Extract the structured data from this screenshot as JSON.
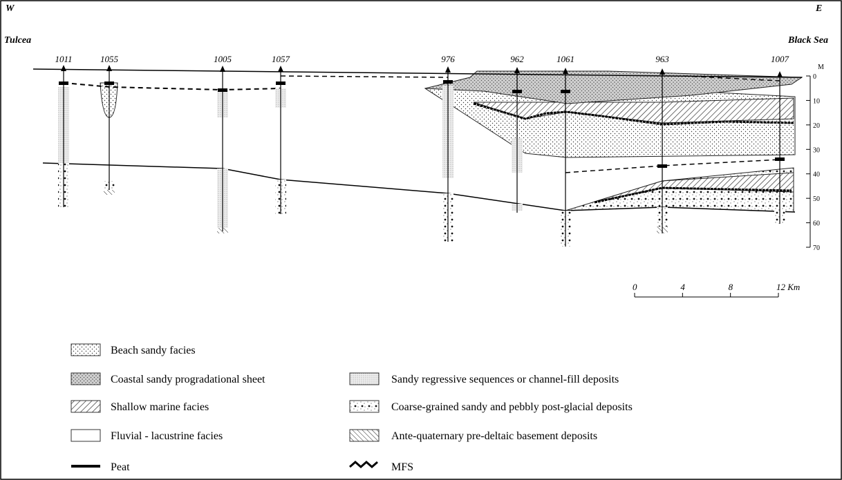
{
  "header": {
    "west": "W",
    "east": "E",
    "west_place": "Tulcea",
    "east_place": "Black Sea"
  },
  "boreholes": [
    "1011",
    "1055",
    "1005",
    "1057",
    "976",
    "962",
    "1061",
    "963",
    "1007"
  ],
  "depth_axis": {
    "unit": "M",
    "ticks": [
      0,
      10,
      20,
      30,
      40,
      50,
      60,
      70
    ]
  },
  "scale_bar": {
    "ticks": [
      "0",
      "4",
      "8",
      "12 Km"
    ]
  },
  "legend": [
    "Beach sandy facies",
    "Coastal sandy progradational sheet",
    "Shallow marine facies",
    "Fluvial - lacustrine facies",
    "Peat",
    "Sandy regressive sequences or channel-fill deposits",
    "Coarse-grained sandy and pebbly post-glacial deposits",
    "Ante-quaternary pre-deltaic basement deposits",
    "MFS"
  ]
}
